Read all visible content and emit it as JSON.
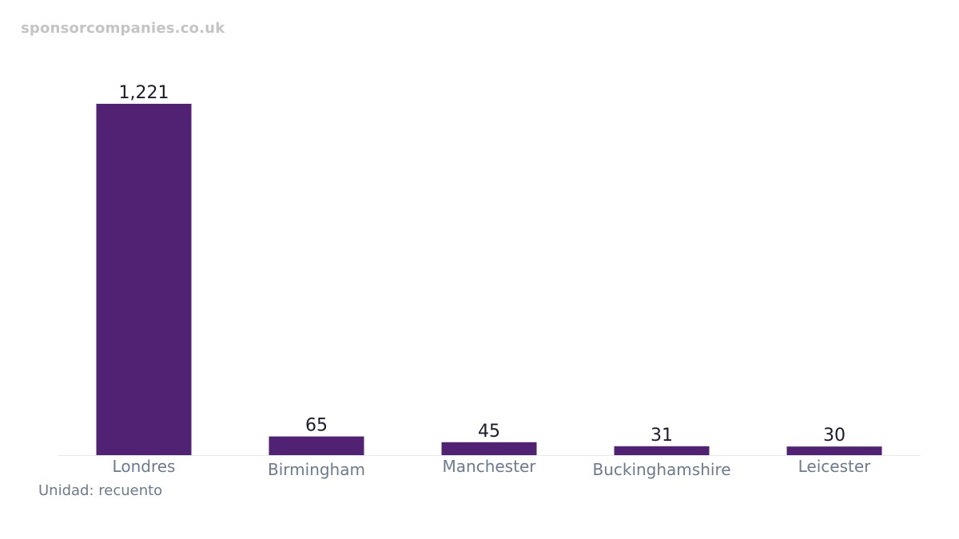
{
  "watermark": "sponsorcompanies.co.uk",
  "unit_label": "Unidad: recuento",
  "chart_data": {
    "type": "bar",
    "categories": [
      "Londres",
      "Birmingham",
      "Manchester",
      "Buckinghamshire",
      "Leicester"
    ],
    "values": [
      1221,
      65,
      45,
      31,
      30
    ],
    "value_labels": [
      "1,221",
      "65",
      "45",
      "31",
      "30"
    ],
    "title": "",
    "xlabel": "",
    "ylabel": "",
    "ylim": [
      0,
      1221
    ],
    "grid": false,
    "bar_color": "#512173",
    "axis_color": "#e5e7eb"
  }
}
